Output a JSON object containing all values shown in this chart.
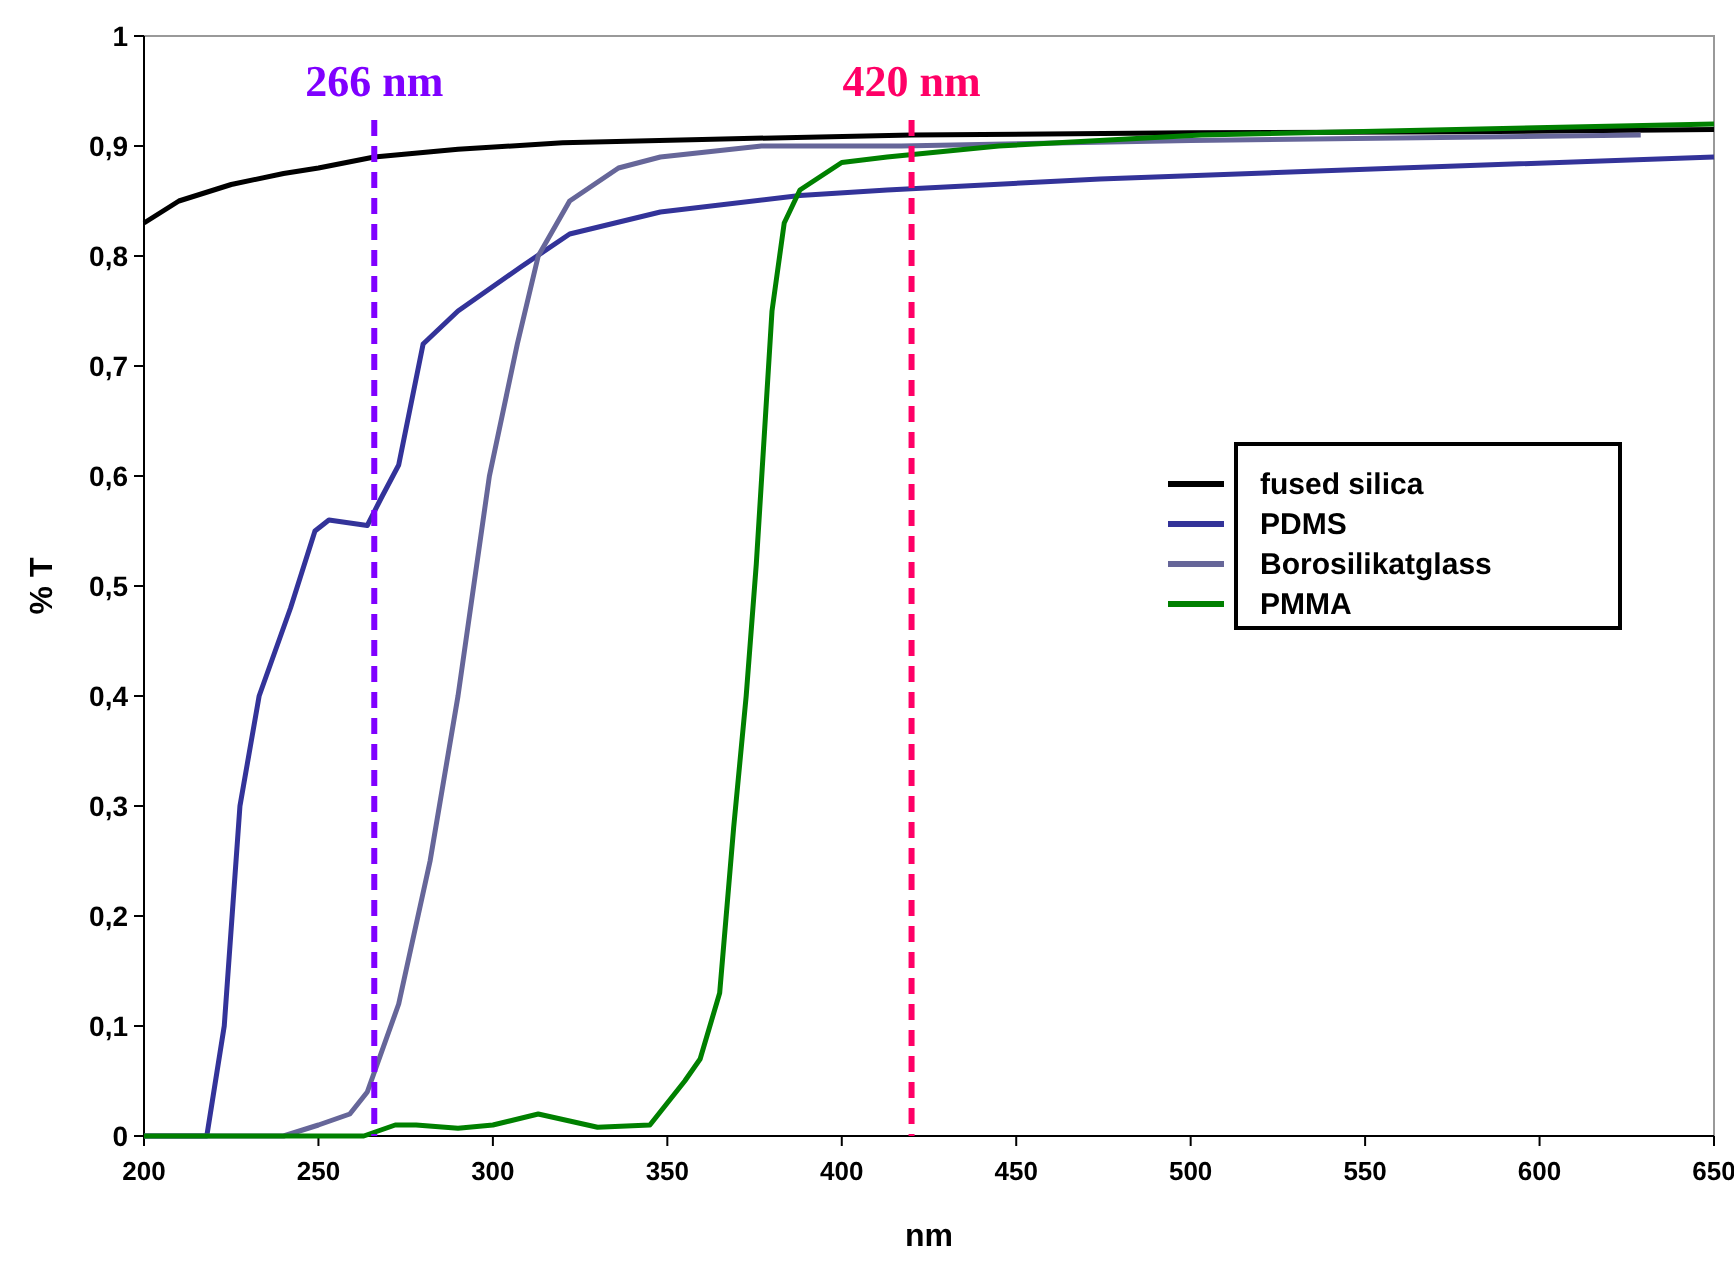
{
  "chart_data": {
    "type": "line",
    "xlabel": "nm",
    "ylabel": "% T",
    "xlim": [
      200,
      650
    ],
    "ylim": [
      0,
      1
    ],
    "xticks": [
      200,
      250,
      300,
      350,
      400,
      450,
      500,
      550,
      600,
      650
    ],
    "yticks": [
      0,
      {
        "value": 0.1,
        "label": "0,1"
      },
      {
        "value": 0.2,
        "label": "0,2"
      },
      {
        "value": 0.3,
        "label": "0,3"
      },
      {
        "value": 0.4,
        "label": "0,4"
      },
      {
        "value": 0.5,
        "label": "0,5"
      },
      {
        "value": 0.6,
        "label": "0,6"
      },
      {
        "value": 0.7,
        "label": "0,7"
      },
      {
        "value": 0.8,
        "label": "0,8"
      },
      {
        "value": 0.9,
        "label": "0,9"
      },
      1
    ],
    "grid": false,
    "legend": "right",
    "marker": "none",
    "line_style": "solid",
    "ref_lines": [
      {
        "axis": "x",
        "value": 266,
        "label": "266 nm",
        "color": "#7f00ff",
        "line_style": "dashed"
      },
      {
        "axis": "x",
        "value": 420,
        "label": "420 nm",
        "color": "#ff0066",
        "line_style": "dashed"
      }
    ],
    "series": [
      {
        "name": "fused silica",
        "color": "#000000",
        "x": [
          200,
          210,
          225,
          240,
          250,
          266,
          290,
          320,
          360,
          420,
          500,
          580,
          650
        ],
        "values": [
          0.83,
          0.85,
          0.865,
          0.875,
          0.88,
          0.89,
          0.897,
          0.903,
          0.906,
          0.91,
          0.912,
          0.913,
          0.915
        ]
      },
      {
        "name": "PDMS",
        "color": "#333399",
        "x": [
          200,
          218,
          223,
          227.5,
          233,
          242,
          249,
          253,
          264,
          268,
          273,
          280,
          290,
          308,
          322,
          348,
          388,
          413,
          474,
          560,
          650
        ],
        "values": [
          0,
          0,
          0.1,
          0.3,
          0.4,
          0.48,
          0.55,
          0.56,
          0.555,
          0.58,
          0.61,
          0.72,
          0.75,
          0.79,
          0.82,
          0.84,
          0.855,
          0.86,
          0.87,
          0.88,
          0.89
        ]
      },
      {
        "name": "Borosilikatglass",
        "color": "#666699",
        "x": [
          200,
          240,
          250,
          259,
          264,
          273,
          282,
          290,
          299,
          307,
          313,
          322,
          336,
          348,
          377,
          417,
          500,
          629
        ],
        "values": [
          0,
          0,
          0.01,
          0.02,
          0.04,
          0.12,
          0.25,
          0.4,
          0.6,
          0.72,
          0.8,
          0.85,
          0.88,
          0.89,
          0.9,
          0.9,
          0.905,
          0.91
        ]
      },
      {
        "name": "PMMA",
        "color": "#008000",
        "x": [
          200,
          263,
          272,
          278,
          290,
          300,
          313,
          330,
          345,
          355,
          359.4,
          365,
          369,
          372.6,
          375.5,
          380,
          383.5,
          388,
          400,
          413,
          445,
          503,
          650
        ],
        "values": [
          0,
          0,
          0.01,
          0.01,
          0.007,
          0.01,
          0.02,
          0.008,
          0.01,
          0.05,
          0.07,
          0.13,
          0.28,
          0.4,
          0.52,
          0.75,
          0.83,
          0.86,
          0.885,
          0.89,
          0.9,
          0.91,
          0.92
        ]
      }
    ]
  }
}
